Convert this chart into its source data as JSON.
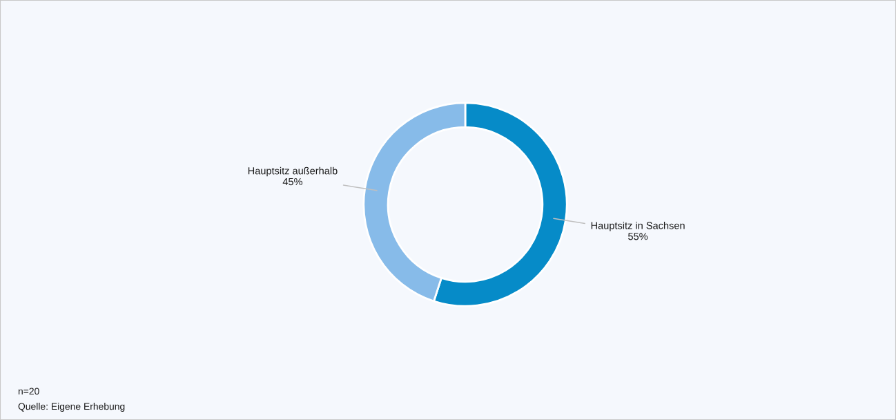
{
  "chart_data": {
    "type": "donut",
    "categories": [
      "Hauptsitz in Sachsen",
      "Hauptsitz außerhalb"
    ],
    "values": [
      55,
      45
    ],
    "colors": [
      "#068bc8",
      "#87bbe9"
    ],
    "value_labels": [
      "55%",
      "45%"
    ],
    "legend": false,
    "annotations": [
      "n=20",
      "Quelle: Eigene Erhebung"
    ]
  }
}
